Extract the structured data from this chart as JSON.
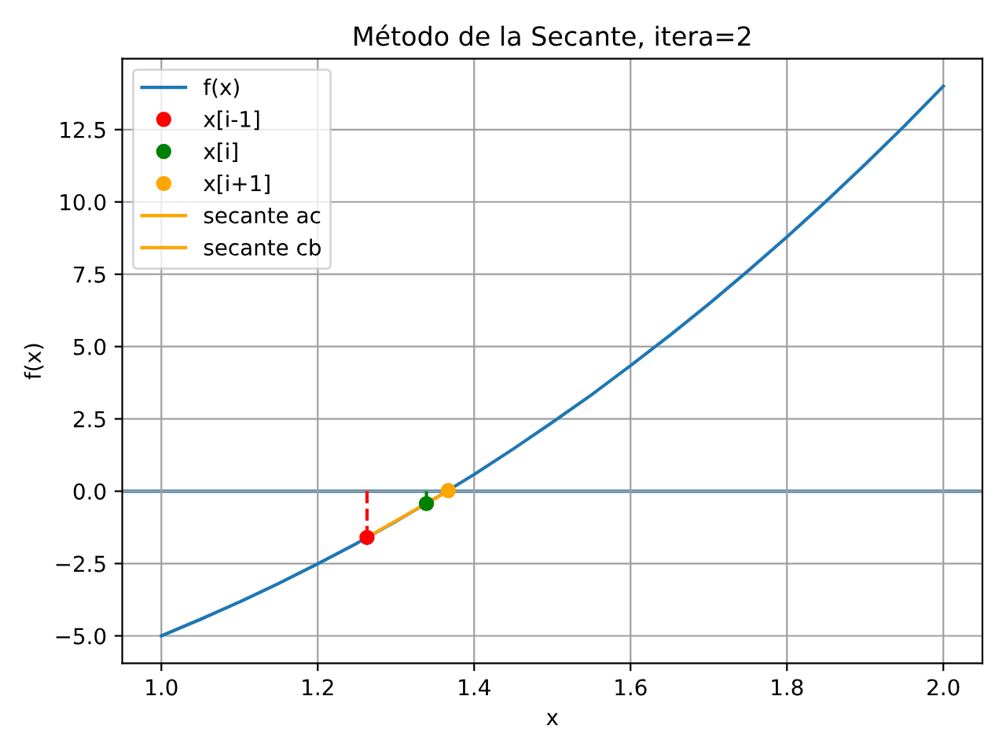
{
  "chart_data": {
    "type": "line",
    "title": "Método de la Secante, itera=2",
    "xlabel": "x",
    "ylabel": "f(x)",
    "series": [
      {
        "name": "f(x)",
        "color": "#1f77b4",
        "x": [
          1.0,
          1.05,
          1.1,
          1.15,
          1.2,
          1.25,
          1.3,
          1.35,
          1.4,
          1.45,
          1.5,
          1.55,
          1.6,
          1.65,
          1.7,
          1.75,
          1.8,
          1.85,
          1.9,
          1.95,
          2.0
        ],
        "values": [
          -5.0,
          -4.43,
          -3.83,
          -3.19,
          -2.51,
          -1.8,
          -1.04,
          -0.25,
          0.58,
          1.46,
          2.38,
          3.33,
          4.34,
          5.38,
          6.47,
          7.61,
          8.79,
          10.02,
          11.3,
          12.62,
          14.0
        ]
      },
      {
        "name": "x[i-1]",
        "type": "scatter",
        "marker": "circle",
        "color": "#ff0000",
        "x": [
          1.263
        ],
        "values": [
          -1.6
        ]
      },
      {
        "name": "x[i]",
        "type": "scatter",
        "marker": "circle",
        "color": "#008000",
        "x": [
          1.339
        ],
        "values": [
          -0.43
        ]
      },
      {
        "name": "x[i+1]",
        "type": "scatter",
        "marker": "circle",
        "color": "#ffa500",
        "x": [
          1.367
        ],
        "values": [
          0.02
        ]
      },
      {
        "name": "secante ac",
        "color": "#ffa500",
        "x": [
          1.263,
          1.367
        ],
        "values": [
          -1.6,
          0.02
        ]
      },
      {
        "name": "secante cb",
        "color": "#ffa500",
        "x": [
          1.339,
          1.367
        ],
        "values": [
          -0.43,
          0.02
        ]
      },
      {
        "line_style": "dashed",
        "color": "#ff0000",
        "x": [
          1.263,
          1.263
        ],
        "values": [
          0.0,
          -1.6
        ]
      },
      {
        "line_style": "dashed",
        "color": "#008000",
        "x": [
          1.339,
          1.339
        ],
        "values": [
          0.0,
          -0.43
        ]
      }
    ],
    "ref_lines": [
      {
        "axis": "y",
        "value": 0,
        "color": "#1f77b4"
      }
    ],
    "xlim": [
      0.95,
      2.05
    ],
    "xticks": [
      {
        "value": 1.0,
        "label": "1.0"
      },
      {
        "value": 1.2,
        "label": "1.2"
      },
      {
        "value": 1.4,
        "label": "1.4"
      },
      {
        "value": 1.6,
        "label": "1.6"
      },
      {
        "value": 1.8,
        "label": "1.8"
      },
      {
        "value": 2.0,
        "label": "2.0"
      }
    ],
    "ylim": [
      -5.95,
      14.95
    ],
    "yticks": [
      {
        "value": -5,
        "label": "−5.0"
      },
      {
        "value": -2.5,
        "label": "−2.5"
      },
      {
        "value": 0,
        "label": "0.0"
      },
      {
        "value": 2.5,
        "label": "2.5"
      },
      {
        "value": 5,
        "label": "5.0"
      },
      {
        "value": 7.5,
        "label": "7.5"
      },
      {
        "value": 10,
        "label": "10.0"
      },
      {
        "value": 12.5,
        "label": "12.5"
      }
    ],
    "grid": true,
    "legend": "top left"
  }
}
